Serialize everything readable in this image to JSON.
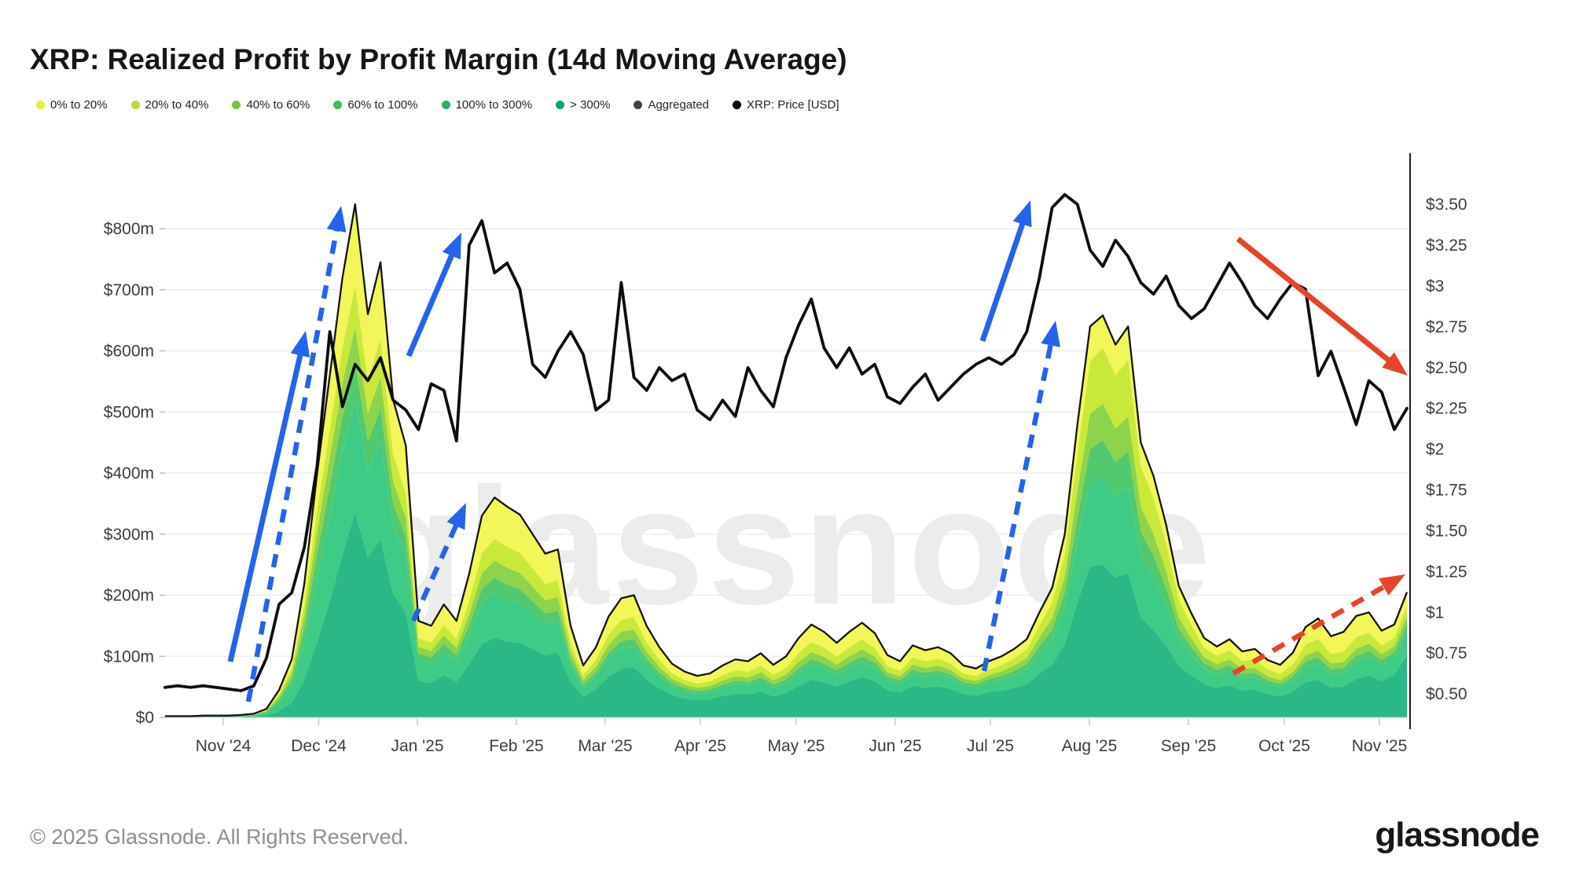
{
  "header": {
    "title": "XRP: Realized Profit by Profit Margin (14d Moving Average)"
  },
  "legend": {
    "items": [
      {
        "label": "0% to 20%",
        "color": "#e7ef33",
        "type": "band"
      },
      {
        "label": "20% to 40%",
        "color": "#b6e037",
        "type": "band"
      },
      {
        "label": "40% to 60%",
        "color": "#6fc93d",
        "type": "band"
      },
      {
        "label": "60% to 100%",
        "color": "#3fbd55",
        "type": "band"
      },
      {
        "label": "100% to 300%",
        "color": "#2cb163",
        "type": "band"
      },
      {
        "label": "> 300%",
        "color": "#0ca671",
        "type": "band"
      },
      {
        "label": "Aggregated",
        "color": "#3f4448",
        "type": "line"
      },
      {
        "label": "XRP: Price [USD]",
        "color": "#000000",
        "type": "line"
      }
    ]
  },
  "watermark": "glassnode",
  "footer": {
    "copyright": "© 2025 Glassnode. All Rights Reserved.",
    "logo": "glassnode"
  },
  "chart_data": {
    "type": "area",
    "stacked": true,
    "title": "XRP: Realized Profit by Profit Margin (14d Moving Average)",
    "x_axis": {
      "tick_labels": [
        "Nov '24",
        "Dec '24",
        "Jan '25",
        "Feb '25",
        "Mar '25",
        "Apr '25",
        "May '25",
        "Jun '25",
        "Jul '25",
        "Aug '25",
        "Sep '25",
        "Oct '25",
        "Nov '25"
      ],
      "start": "2024-10-12",
      "end": "2025-11-08",
      "sample_interval_days": 4
    },
    "y_axis_left": {
      "unit": "USD (millions), realized profit",
      "tick_labels": [
        "$0",
        "$100m",
        "$200m",
        "$300m",
        "$400m",
        "$500m",
        "$600m",
        "$700m",
        "$800m"
      ],
      "tick_values": [
        0,
        100,
        200,
        300,
        400,
        500,
        600,
        700,
        800
      ],
      "range": [
        0,
        880
      ],
      "grid": true
    },
    "y_axis_right": {
      "unit": "XRP price USD",
      "tick_labels": [
        "$3.50",
        "$3.25",
        "$3",
        "$2.75",
        "$2.50",
        "$2.25",
        "$2",
        "$1.75",
        "$1.50",
        "$1.25",
        "$1",
        "$0.75",
        "$0.50"
      ],
      "tick_values": [
        3.5,
        3.25,
        3.0,
        2.75,
        2.5,
        2.25,
        2.0,
        1.75,
        1.5,
        1.25,
        1.0,
        0.75,
        0.5
      ],
      "range": [
        0.14,
        3.81
      ],
      "grid": false
    },
    "legend_position": "top-left",
    "price_usd": [
      0.54,
      0.55,
      0.54,
      0.55,
      0.54,
      0.53,
      0.52,
      0.55,
      0.72,
      1.05,
      1.12,
      1.4,
      1.9,
      2.72,
      2.26,
      2.52,
      2.42,
      2.56,
      2.3,
      2.24,
      2.12,
      2.4,
      2.36,
      2.05,
      3.25,
      3.4,
      3.08,
      3.14,
      2.98,
      2.52,
      2.44,
      2.6,
      2.72,
      2.58,
      2.24,
      2.3,
      3.02,
      2.44,
      2.36,
      2.5,
      2.42,
      2.46,
      2.24,
      2.18,
      2.3,
      2.2,
      2.5,
      2.36,
      2.26,
      2.56,
      2.76,
      2.92,
      2.62,
      2.5,
      2.62,
      2.46,
      2.52,
      2.32,
      2.28,
      2.38,
      2.46,
      2.3,
      2.38,
      2.46,
      2.52,
      2.56,
      2.52,
      2.58,
      2.72,
      3.05,
      3.48,
      3.56,
      3.5,
      3.22,
      3.12,
      3.28,
      3.18,
      3.02,
      2.95,
      3.06,
      2.88,
      2.8,
      2.86,
      3.0,
      3.14,
      3.02,
      2.88,
      2.8,
      2.92,
      3.02,
      2.98,
      2.45,
      2.6,
      2.38,
      2.15,
      2.42,
      2.35,
      2.12,
      2.25
    ],
    "total_realized_profit_musd": [
      2,
      2,
      2,
      3,
      3,
      3,
      4,
      6,
      14,
      45,
      95,
      220,
      400,
      560,
      720,
      840,
      660,
      745,
      520,
      445,
      158,
      150,
      185,
      158,
      235,
      330,
      360,
      345,
      332,
      300,
      268,
      275,
      150,
      85,
      115,
      165,
      195,
      200,
      150,
      115,
      88,
      75,
      68,
      72,
      85,
      95,
      92,
      105,
      86,
      100,
      130,
      152,
      140,
      122,
      140,
      155,
      138,
      102,
      92,
      118,
      110,
      115,
      105,
      85,
      80,
      92,
      100,
      112,
      128,
      172,
      212,
      300,
      480,
      640,
      658,
      610,
      640,
      450,
      395,
      315,
      215,
      170,
      130,
      116,
      128,
      108,
      112,
      94,
      86,
      106,
      148,
      162,
      133,
      140,
      166,
      172,
      142,
      152,
      205
    ],
    "bands": {
      "order_bottom_to_top": [
        "> 300%",
        "100% to 300%",
        "60% to 100%",
        "40% to 60%",
        "20% to 40%",
        "0% to 20%"
      ],
      "fill_colors": [
        "#2ab886",
        "#3ecb85",
        "#52c96e",
        "#8dd34b",
        "#c8e93a",
        "#f2f659"
      ],
      "aggregated_outline_color": "#141414",
      "fraction_keyframes": [
        {
          "i": 0,
          "f": [
            0.3,
            0.25,
            0.1,
            0.1,
            0.1,
            0.15
          ]
        },
        {
          "i": 9,
          "f": [
            0.22,
            0.3,
            0.13,
            0.11,
            0.09,
            0.15
          ]
        },
        {
          "i": 15,
          "f": [
            0.4,
            0.22,
            0.07,
            0.07,
            0.08,
            0.16
          ]
        },
        {
          "i": 20,
          "f": [
            0.38,
            0.21,
            0.07,
            0.07,
            0.09,
            0.18
          ]
        },
        {
          "i": 27,
          "f": [
            0.36,
            0.2,
            0.07,
            0.08,
            0.1,
            0.19
          ]
        },
        {
          "i": 33,
          "f": [
            0.4,
            0.18,
            0.06,
            0.08,
            0.1,
            0.18
          ]
        },
        {
          "i": 40,
          "f": [
            0.42,
            0.16,
            0.06,
            0.08,
            0.1,
            0.18
          ]
        },
        {
          "i": 50,
          "f": [
            0.4,
            0.16,
            0.06,
            0.08,
            0.11,
            0.19
          ]
        },
        {
          "i": 58,
          "f": [
            0.44,
            0.16,
            0.06,
            0.07,
            0.1,
            0.17
          ]
        },
        {
          "i": 65,
          "f": [
            0.45,
            0.17,
            0.06,
            0.07,
            0.1,
            0.15
          ]
        },
        {
          "i": 71,
          "f": [
            0.4,
            0.2,
            0.08,
            0.09,
            0.12,
            0.11
          ]
        },
        {
          "i": 74,
          "f": [
            0.38,
            0.22,
            0.09,
            0.09,
            0.14,
            0.08
          ]
        },
        {
          "i": 78,
          "f": [
            0.36,
            0.22,
            0.09,
            0.09,
            0.15,
            0.09
          ]
        },
        {
          "i": 82,
          "f": [
            0.42,
            0.19,
            0.07,
            0.08,
            0.12,
            0.12
          ]
        },
        {
          "i": 89,
          "f": [
            0.4,
            0.17,
            0.06,
            0.07,
            0.12,
            0.18
          ]
        },
        {
          "i": 93,
          "f": [
            0.36,
            0.16,
            0.06,
            0.07,
            0.12,
            0.23
          ]
        },
        {
          "i": 96,
          "f": [
            0.42,
            0.18,
            0.06,
            0.07,
            0.1,
            0.17
          ]
        },
        {
          "i": 98,
          "f": [
            0.5,
            0.2,
            0.05,
            0.06,
            0.08,
            0.11
          ]
        }
      ]
    },
    "price_line_color": "#0d0d0d",
    "annotations": {
      "arrows": [
        {
          "name": "rally-1-price",
          "color": "#2563eb",
          "style": "solid",
          "from": [
            293,
            842
          ],
          "to": [
            389,
            421
          ]
        },
        {
          "name": "rally-1-profit",
          "color": "#2563eb",
          "style": "dashed",
          "from": [
            316,
            893
          ],
          "to": [
            434,
            262
          ]
        },
        {
          "name": "rally-2-price",
          "color": "#2563eb",
          "style": "solid",
          "from": [
            520,
            453
          ],
          "to": [
            587,
            296
          ]
        },
        {
          "name": "rally-2-profit",
          "color": "#2563eb",
          "style": "dashed",
          "from": [
            526,
            790
          ],
          "to": [
            593,
            640
          ]
        },
        {
          "name": "rally-3-price",
          "color": "#2563eb",
          "style": "solid",
          "from": [
            1250,
            434
          ],
          "to": [
            1311,
            255
          ]
        },
        {
          "name": "rally-3-profit",
          "color": "#2563eb",
          "style": "dashed",
          "from": [
            1252,
            854
          ],
          "to": [
            1343,
            408
          ]
        },
        {
          "name": "downtrend-price",
          "color": "#e8432a",
          "style": "solid",
          "from": [
            1575,
            304
          ],
          "to": [
            1791,
            478
          ]
        },
        {
          "name": "uptrend-profit",
          "color": "#e8432a",
          "style": "dashed",
          "from": [
            1569,
            857
          ],
          "to": [
            1788,
            731
          ]
        }
      ]
    }
  }
}
